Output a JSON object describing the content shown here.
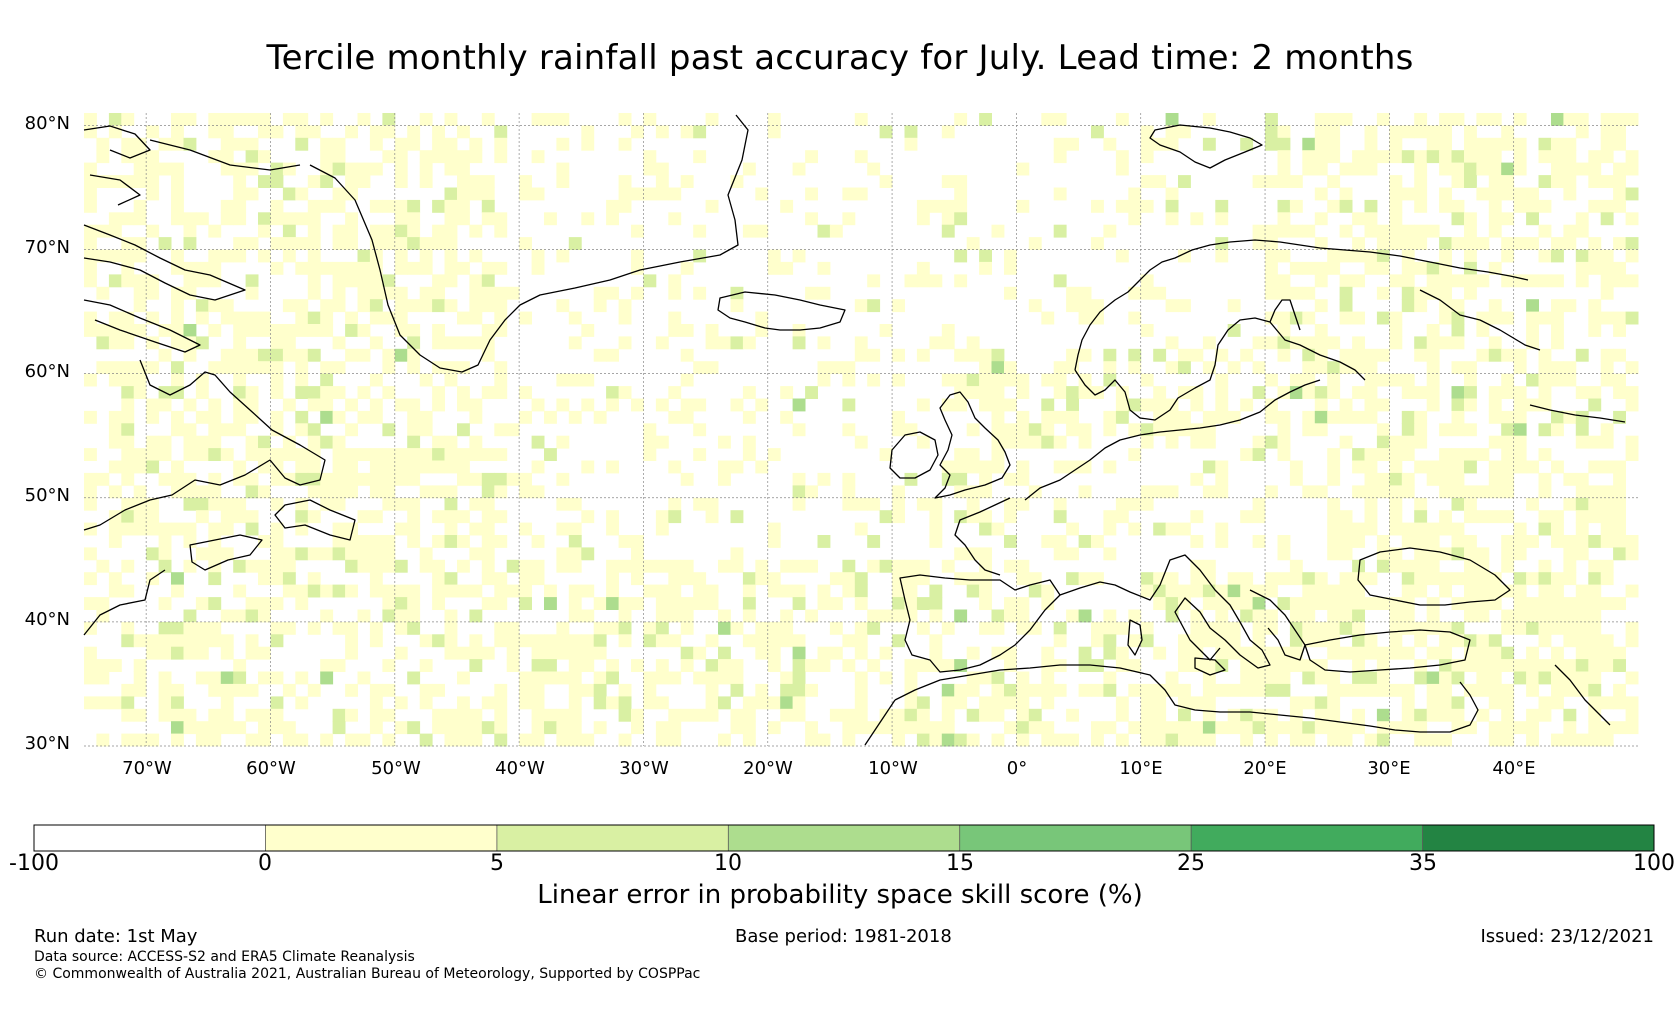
{
  "title": "Tercile monthly rainfall past accuracy for July. Lead time: 2 months",
  "map": {
    "lat_labels": [
      "80°N",
      "70°N",
      "60°N",
      "50°N",
      "40°N",
      "30°N"
    ],
    "lon_labels": [
      "70°W",
      "60°W",
      "50°W",
      "40°W",
      "30°W",
      "20°W",
      "10°W",
      "0°",
      "10°E",
      "20°E",
      "30°E",
      "40°E"
    ],
    "extent": {
      "lon_min": -75,
      "lon_max": 50,
      "lat_min": 30,
      "lat_max": 81
    },
    "colors": {
      "ocean_neutral": "#ffffff",
      "cat_0_5": "#ffffcc",
      "cat_5_10": "#d9f0a3",
      "cat_10_15": "#addd8e",
      "coast": "#000000"
    }
  },
  "colorbar": {
    "ticks": [
      "-100",
      "0",
      "5",
      "10",
      "15",
      "25",
      "35",
      "100"
    ],
    "colors": [
      "#ffffff",
      "#ffffcc",
      "#d9f0a3",
      "#addd8e",
      "#78c679",
      "#41ab5d",
      "#238443"
    ],
    "label": "Linear error in probability space skill score (%)"
  },
  "footer": {
    "run_date": "Run date: 1st May",
    "base_period": "Base period: 1981-2018",
    "issued": "Issued: 23/12/2021",
    "data_source": "Data source: ACCESS-S2 and ERA5 Climate Reanalysis",
    "copyright": "© Commonwealth of Australia 2021, Australian Bureau of Meteorology, Supported by COSPPac"
  }
}
